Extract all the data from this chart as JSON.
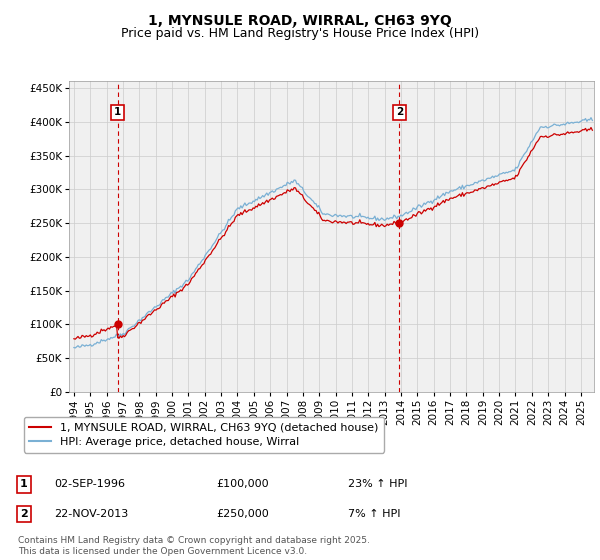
{
  "title": "1, MYNSULE ROAD, WIRRAL, CH63 9YQ",
  "subtitle": "Price paid vs. HM Land Registry's House Price Index (HPI)",
  "ylim": [
    0,
    460000
  ],
  "yticks": [
    0,
    50000,
    100000,
    150000,
    200000,
    250000,
    300000,
    350000,
    400000,
    450000
  ],
  "xlim_start": 1993.7,
  "xlim_end": 2025.8,
  "sale1_x": 1996.67,
  "sale1_y": 100000,
  "sale1_label": "1",
  "sale2_x": 2013.9,
  "sale2_y": 250000,
  "sale2_label": "2",
  "red_line_color": "#cc0000",
  "blue_line_color": "#7ab0d4",
  "vline_color": "#cc0000",
  "grid_color": "#cccccc",
  "background_color": "#ffffff",
  "plot_bg_color": "#f0f0f0",
  "legend_label_red": "1, MYNSULE ROAD, WIRRAL, CH63 9YQ (detached house)",
  "legend_label_blue": "HPI: Average price, detached house, Wirral",
  "annotation1_date": "02-SEP-1996",
  "annotation1_price": "£100,000",
  "annotation1_hpi": "23% ↑ HPI",
  "annotation2_date": "22-NOV-2013",
  "annotation2_price": "£250,000",
  "annotation2_hpi": "7% ↑ HPI",
  "footnote": "Contains HM Land Registry data © Crown copyright and database right 2025.\nThis data is licensed under the Open Government Licence v3.0.",
  "title_fontsize": 10,
  "subtitle_fontsize": 9,
  "tick_fontsize": 7.5,
  "legend_fontsize": 8,
  "annotation_fontsize": 8,
  "footnote_fontsize": 6.5
}
